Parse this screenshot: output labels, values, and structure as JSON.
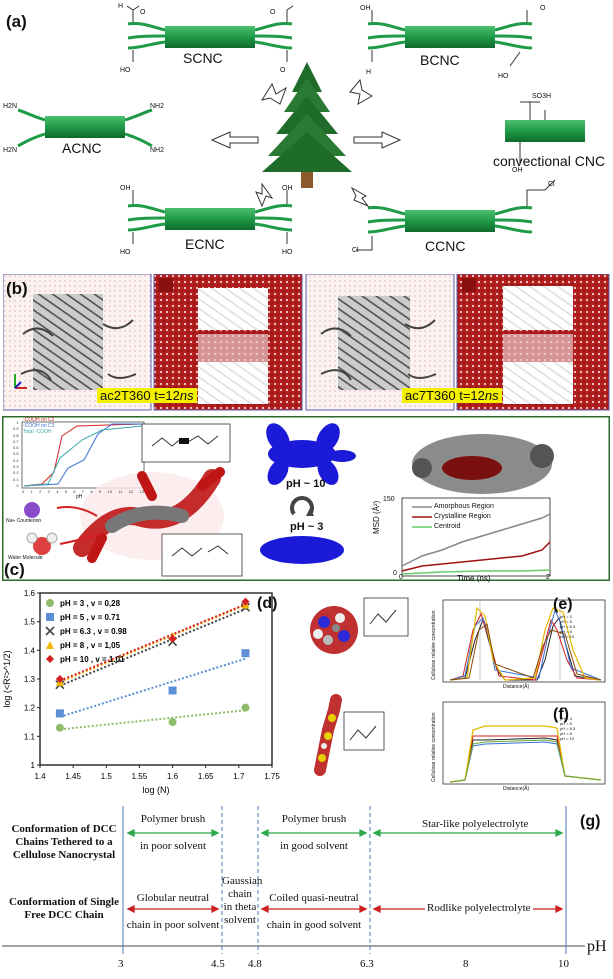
{
  "panel_a": {
    "label": "(a)",
    "variants": [
      {
        "name": "SCNC",
        "groups": [
          "O=C–H",
          "HO–C=O"
        ]
      },
      {
        "name": "BCNC",
        "groups": [
          "OH–C=O",
          "HO–S=O"
        ]
      },
      {
        "name": "ACNC",
        "groups": [
          "H2N",
          "NH2"
        ]
      },
      {
        "name": "convectional CNC",
        "groups": [
          "HO–S=O",
          "OH"
        ]
      },
      {
        "name": "ECNC",
        "groups": [
          "OH–C=O",
          "HO"
        ]
      },
      {
        "name": "CCNC",
        "groups": [
          "N+ Cl-"
        ]
      }
    ],
    "chem": {
      "h2n": "H2N",
      "nh2": "NH2",
      "oh": "OH",
      "ho": "HO",
      "h": "H",
      "o": "O",
      "so3h": "SO3H",
      "cl": "Cl"
    },
    "colors": {
      "rod": "#1f9a46",
      "rod_dark": "#136f30",
      "tree": "#1e6b2a",
      "trunk": "#8a5a2b"
    }
  },
  "panel_b": {
    "label": "(b)",
    "captions": [
      {
        "name": "ac2T360",
        "t": "t=12",
        "unit": "ns"
      },
      {
        "name": "ac7T360",
        "t": "t=12",
        "unit": "ns"
      }
    ]
  },
  "panel_c": {
    "label": "(c)",
    "inset_legend": [
      "-COOH on C2",
      "-COOH on C3",
      "Total -COOH"
    ],
    "inset_x_ticks": [
      "0",
      "1",
      "2",
      "3",
      "4",
      "5",
      "6",
      "7",
      "8",
      "9",
      "10",
      "11",
      "12",
      "13"
    ],
    "inset_y_ticks": [
      "0",
      "0.1",
      "0.2",
      "0.3",
      "0.4",
      "0.5",
      "0.6",
      "0.7",
      "0.8",
      "0.9",
      "1"
    ],
    "inset_xlabel": "pH",
    "counterion_label": "Na+ Counterion",
    "water_label": "Water Molecule",
    "ph_high": "pH ~ 10",
    "ph_low": "pH ~ 3",
    "msd": {
      "ylabel": "MSD (Å²)",
      "xlabel": "Time (ns)",
      "y_ticks": [
        "0",
        "150"
      ],
      "x_ticks": [
        "0",
        "2"
      ],
      "legend": [
        "Amorphous Region",
        "Crystalline Region",
        "Centroid"
      ],
      "colors": [
        "#888888",
        "#a01010",
        "#66cc66"
      ]
    }
  },
  "chart_data": {
    "type": "scatter",
    "panel_label": "(d)",
    "xlabel": "log (N)",
    "ylabel": "log (<R²>^1/2)",
    "xlim": [
      1.4,
      1.75
    ],
    "ylim": [
      1.0,
      1.6
    ],
    "x_ticks": [
      "1.4",
      "1.45",
      "1.5",
      "1.55",
      "1.6",
      "1.65",
      "1.7",
      "1.75"
    ],
    "y_ticks": [
      "1",
      "1.1",
      "1.2",
      "1.3",
      "1.4",
      "1.5",
      "1.6"
    ],
    "series": [
      {
        "name": "pH = 3   ,   v = 0,28",
        "color": "#8fbc6a",
        "marker": "circle",
        "x": [
          1.43,
          1.6,
          1.71
        ],
        "y": [
          1.13,
          1.15,
          1.2
        ]
      },
      {
        "name": "pH = 5   ,   v = 0.71",
        "color": "#5b8fd6",
        "marker": "square",
        "x": [
          1.43,
          1.6,
          1.71
        ],
        "y": [
          1.18,
          1.26,
          1.39
        ]
      },
      {
        "name": "pH = 6.3 ,   v = 0.98",
        "color": "#444444",
        "marker": "x",
        "x": [
          1.43,
          1.6,
          1.71
        ],
        "y": [
          1.28,
          1.43,
          1.55
        ]
      },
      {
        "name": "pH = 8   ,   v = 1,05",
        "color": "#f2b705",
        "marker": "triangle",
        "x": [
          1.43,
          1.6,
          1.71
        ],
        "y": [
          1.29,
          1.45,
          1.56
        ]
      },
      {
        "name": "pH = 10  ,   v = 1.01",
        "color": "#d42020",
        "marker": "diamond",
        "x": [
          1.43,
          1.6,
          1.71
        ],
        "y": [
          1.3,
          1.44,
          1.57
        ]
      }
    ]
  },
  "panel_e": {
    "label": "(e)",
    "ylabel": "Cellulose relative concentration",
    "xlabel": "Distance(Å)",
    "legend": [
      "pH = 3",
      "pH = 5",
      "pH = 6.3",
      "pH = 8",
      "pH = 10"
    ],
    "colors": [
      "#222222",
      "#d42020",
      "#3a6fd6",
      "#e6b800",
      "#8a4a10"
    ]
  },
  "panel_f": {
    "label": "(f)",
    "ylabel": "Cellulose relative concentration",
    "xlabel": "Distance(Å)",
    "legend": [
      "pH = 3",
      "pH = 5",
      "pH = 6.3",
      "pH = 8",
      "pH = 10"
    ],
    "colors": [
      "#222222",
      "#d42020",
      "#3a6fd6",
      "#e6b800",
      "#66aa33"
    ]
  },
  "panel_g": {
    "label": "(g)",
    "row1_title": [
      "Conformation of DCC",
      "Chains Tethered to a",
      "Cellulose Nanocrystal"
    ],
    "row2_title": [
      "Conformation of Single",
      "Free DCC Chain"
    ],
    "row1": [
      {
        "text": [
          "Polymer brush",
          "in poor solvent"
        ]
      },
      {
        "text": [
          "Polymer brush",
          "in good solvent"
        ]
      },
      {
        "text": [
          "Star-like polyelectrolyte"
        ]
      }
    ],
    "row2": [
      {
        "text": [
          "Globular neutral",
          "chain in poor solvent"
        ]
      },
      {
        "text": [
          "Gaussian",
          "chain",
          "in theta",
          "solvent"
        ]
      },
      {
        "text": [
          "Coiled quasi-neutral",
          "chain in good solvent"
        ]
      },
      {
        "text": [
          "Rodlike polyelectrolyte"
        ]
      }
    ],
    "ticks": [
      "3",
      "4.5",
      "4.8",
      "6.3",
      "8",
      "10"
    ],
    "axis_label": "pH"
  }
}
